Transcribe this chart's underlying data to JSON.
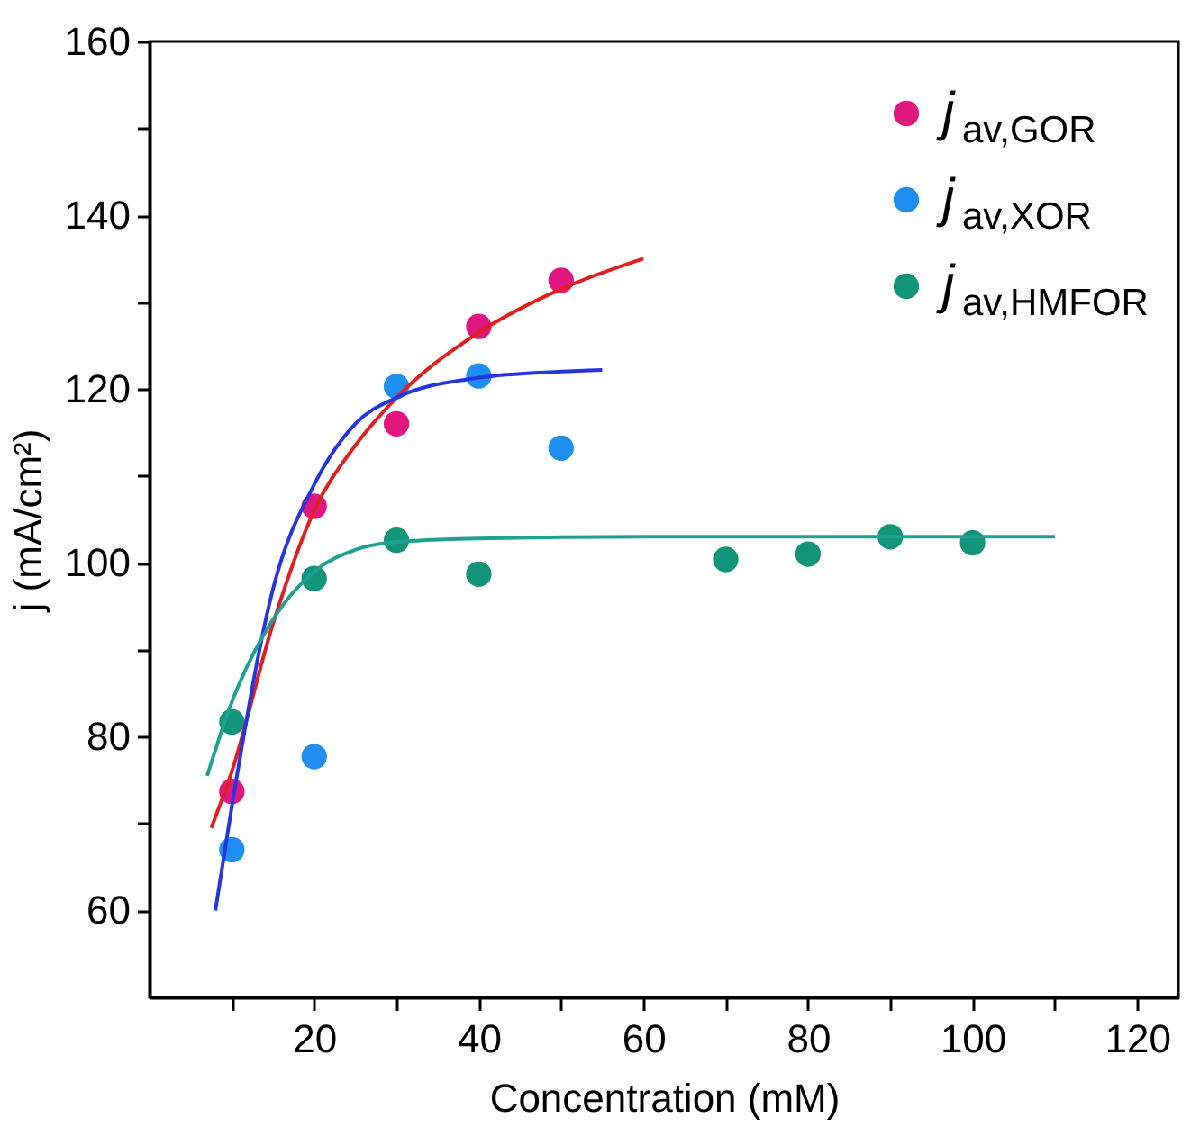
{
  "chart_data": {
    "type": "scatter",
    "xlabel": "Concentration (mM)",
    "ylabel": "j (mA/cm²)",
    "xlim": [
      0,
      125
    ],
    "ylim": [
      50,
      160
    ],
    "xticks": [
      {
        "value": 10,
        "label": null
      },
      20,
      {
        "value": 30,
        "label": null
      },
      40,
      {
        "value": 50,
        "label": null
      },
      60,
      {
        "value": 70,
        "label": null
      },
      80,
      {
        "value": 90,
        "label": null
      },
      100,
      {
        "value": 110,
        "label": null
      },
      120
    ],
    "yticks": [
      60,
      {
        "value": 70,
        "label": null
      },
      80,
      {
        "value": 90,
        "label": null
      },
      100,
      {
        "value": 110,
        "label": null
      },
      120,
      {
        "value": 130,
        "label": null
      },
      140,
      {
        "value": 150,
        "label": null
      },
      160
    ],
    "grid": false,
    "legend": "top right",
    "marker": "circle",
    "series": [
      {
        "name": "j$_{av,GOR}$",
        "color": "#e0177f",
        "x": [
          10,
          20,
          30,
          40,
          50
        ],
        "values": [
          73.7,
          106.5,
          116,
          127.2,
          132.5
        ]
      },
      {
        "name": "j$_{av,XOR}$",
        "color": "#1e8ff0",
        "x": [
          10,
          20,
          30,
          40,
          50
        ],
        "values": [
          67,
          77.7,
          120.3,
          121.5,
          113.2
        ]
      },
      {
        "name": "j$_{av,HMFOR}$",
        "color": "#129479",
        "x": [
          10,
          20,
          30,
          40,
          70,
          80,
          90,
          100
        ],
        "values": [
          81.7,
          98.2,
          102.6,
          98.7,
          100.4,
          101,
          103,
          102.3
        ]
      },
      {
        "type": "line",
        "color": "#e02020",
        "marker": "none",
        "x": [
          7.5,
          10,
          15,
          20,
          25,
          30,
          40,
          50,
          60
        ],
        "values": [
          69.5,
          76,
          93,
          106,
          113.5,
          119,
          126.5,
          131.5,
          135
        ]
      },
      {
        "type": "line",
        "color": "#2535e0",
        "marker": "none",
        "x": [
          8,
          10,
          15,
          20,
          25,
          30,
          40,
          50,
          55
        ],
        "values": [
          60,
          72,
          97,
          109,
          116,
          119,
          121.3,
          122,
          122.2
        ]
      },
      {
        "type": "line",
        "color": "#20a090",
        "marker": "none",
        "x": [
          7,
          10,
          15,
          20,
          25,
          30,
          40,
          60,
          110
        ],
        "values": [
          75.5,
          84,
          93.5,
          99,
          101.5,
          102.4,
          102.8,
          103,
          103
        ]
      }
    ]
  }
}
